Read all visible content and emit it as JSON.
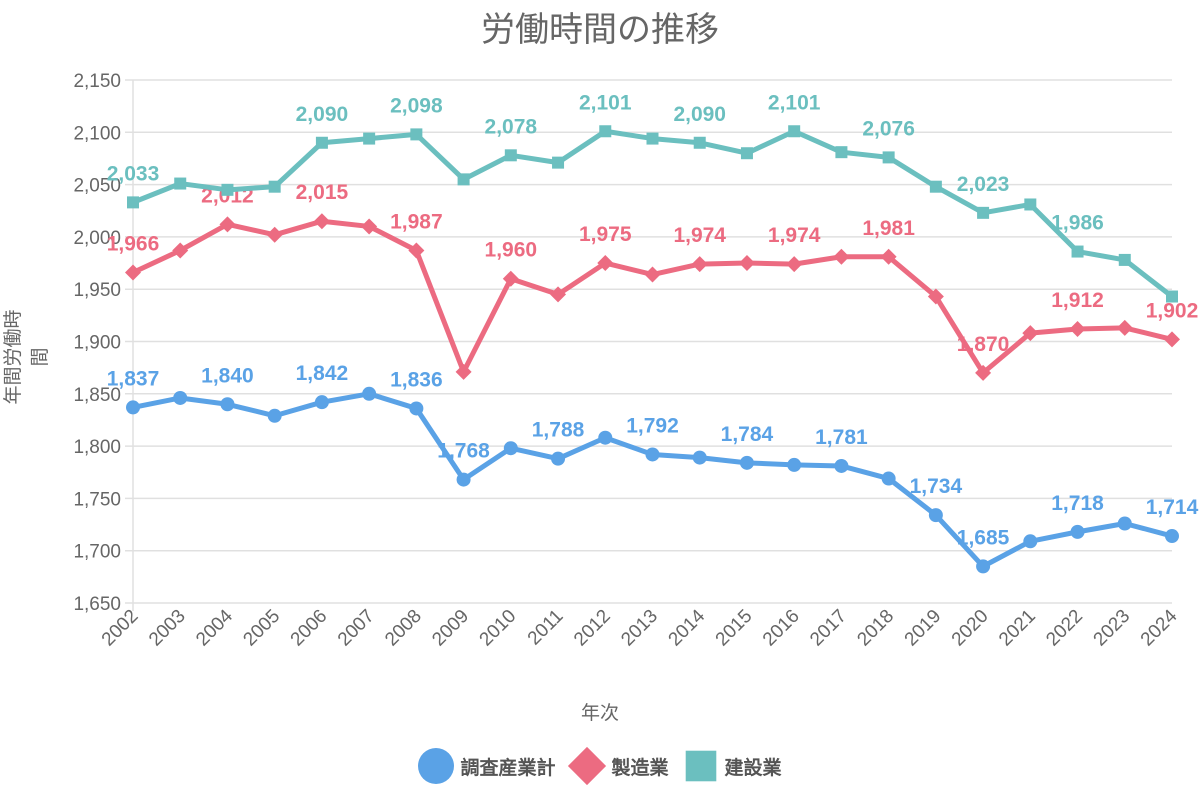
{
  "chart_data": {
    "type": "line",
    "title": "労働時間の推移",
    "xlabel": "年次",
    "ylabel": "年間労働時間",
    "ylim": [
      1650,
      2150
    ],
    "yticks": [
      1650,
      1700,
      1750,
      1800,
      1850,
      1900,
      1950,
      2000,
      2050,
      2100,
      2150
    ],
    "grid": true,
    "legend_placement": "bottom",
    "x": [
      2002,
      2003,
      2004,
      2005,
      2006,
      2007,
      2008,
      2009,
      2010,
      2011,
      2012,
      2013,
      2014,
      2015,
      2016,
      2017,
      2018,
      2019,
      2020,
      2021,
      2022,
      2023,
      2024
    ],
    "series": [
      {
        "name": "調査産業計",
        "color": "#5aa2e6",
        "marker": "circle",
        "values": [
          1837,
          1846,
          1840,
          1829,
          1842,
          1850,
          1836,
          1768,
          1798,
          1788,
          1808,
          1792,
          1789,
          1784,
          1782,
          1781,
          1769,
          1734,
          1685,
          1709,
          1718,
          1726,
          1714
        ],
        "labeled_years": [
          2002,
          2004,
          2006,
          2008,
          2009,
          2011,
          2013,
          2015,
          2017,
          2019,
          2020,
          2022,
          2024
        ]
      },
      {
        "name": "製造業",
        "color": "#ec6b81",
        "marker": "diamond",
        "values": [
          1966,
          1987,
          2012,
          2002,
          2015,
          2010,
          1987,
          1871,
          1960,
          1945,
          1975,
          1964,
          1974,
          1975,
          1974,
          1981,
          1981,
          1943,
          1870,
          1908,
          1912,
          1913,
          1902
        ],
        "labeled_years": [
          2002,
          2004,
          2006,
          2008,
          2010,
          2012,
          2014,
          2016,
          2018,
          2020,
          2022,
          2024
        ]
      },
      {
        "name": "建設業",
        "color": "#6bbfbf",
        "marker": "square",
        "values": [
          2033,
          2051,
          2045,
          2048,
          2090,
          2094,
          2098,
          2055,
          2078,
          2071,
          2101,
          2094,
          2090,
          2080,
          2101,
          2081,
          2076,
          2048,
          2023,
          2031,
          1986,
          1978,
          1943
        ],
        "labeled_years": [
          2002,
          2006,
          2008,
          2010,
          2012,
          2014,
          2016,
          2018,
          2020,
          2022
        ]
      }
    ]
  }
}
